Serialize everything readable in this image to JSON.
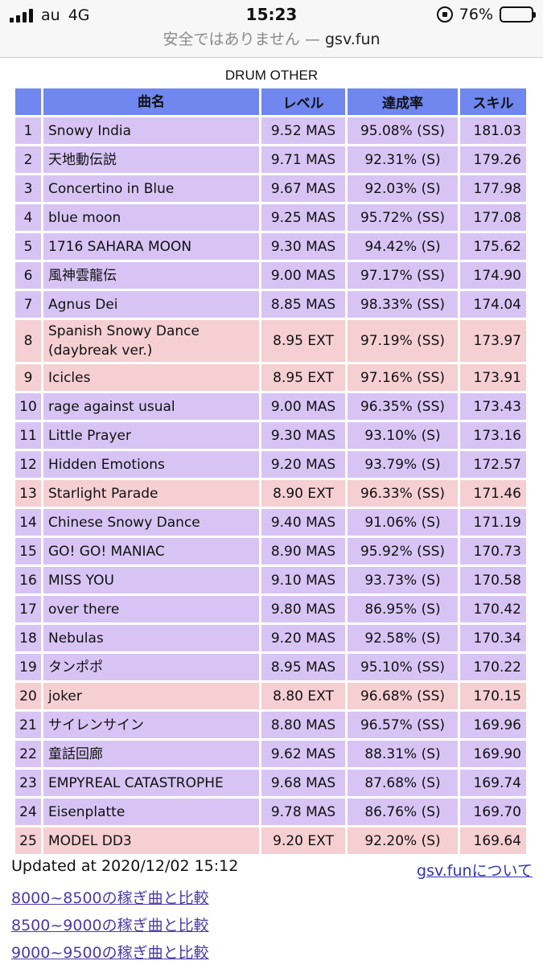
{
  "status": {
    "carrier": "au",
    "network": "4G",
    "time": "15:23",
    "battery": "76%",
    "battery_level": 0.76
  },
  "url": {
    "warning": "安全ではありません — ",
    "domain": "gsv.fun"
  },
  "table": {
    "caption": "DRUM OTHER",
    "headers": {
      "no": "",
      "title": "曲名",
      "level": "レベル",
      "rate": "達成率",
      "skill": "スキル"
    },
    "rows": [
      {
        "no": "1",
        "title": "Snowy India",
        "level": "9.52 MAS",
        "rate": "95.08% (SS)",
        "skill": "181.03",
        "kind": "mas"
      },
      {
        "no": "2",
        "title": "天地動伝説",
        "level": "9.71 MAS",
        "rate": "92.31% (S)",
        "skill": "179.26",
        "kind": "mas"
      },
      {
        "no": "3",
        "title": "Concertino in Blue",
        "level": "9.67 MAS",
        "rate": "92.03% (S)",
        "skill": "177.98",
        "kind": "mas"
      },
      {
        "no": "4",
        "title": "blue moon",
        "level": "9.25 MAS",
        "rate": "95.72% (SS)",
        "skill": "177.08",
        "kind": "mas"
      },
      {
        "no": "5",
        "title": "1716 SAHARA MOON",
        "level": "9.30 MAS",
        "rate": "94.42% (S)",
        "skill": "175.62",
        "kind": "mas"
      },
      {
        "no": "6",
        "title": "風神雲龍伝",
        "level": "9.00 MAS",
        "rate": "97.17% (SS)",
        "skill": "174.90",
        "kind": "mas"
      },
      {
        "no": "7",
        "title": "Agnus Dei",
        "level": "8.85 MAS",
        "rate": "98.33% (SS)",
        "skill": "174.04",
        "kind": "mas"
      },
      {
        "no": "8",
        "title": "Spanish Snowy Dance (daybreak ver.)",
        "level": "8.95 EXT",
        "rate": "97.19% (SS)",
        "skill": "173.97",
        "kind": "ext"
      },
      {
        "no": "9",
        "title": "Icicles",
        "level": "8.95 EXT",
        "rate": "97.16% (SS)",
        "skill": "173.91",
        "kind": "ext"
      },
      {
        "no": "10",
        "title": "rage against usual",
        "level": "9.00 MAS",
        "rate": "96.35% (SS)",
        "skill": "173.43",
        "kind": "mas"
      },
      {
        "no": "11",
        "title": "Little Prayer",
        "level": "9.30 MAS",
        "rate": "93.10% (S)",
        "skill": "173.16",
        "kind": "mas"
      },
      {
        "no": "12",
        "title": "Hidden Emotions",
        "level": "9.20 MAS",
        "rate": "93.79% (S)",
        "skill": "172.57",
        "kind": "mas"
      },
      {
        "no": "13",
        "title": "Starlight Parade",
        "level": "8.90 EXT",
        "rate": "96.33% (SS)",
        "skill": "171.46",
        "kind": "ext"
      },
      {
        "no": "14",
        "title": "Chinese Snowy Dance",
        "level": "9.40 MAS",
        "rate": "91.06% (S)",
        "skill": "171.19",
        "kind": "mas"
      },
      {
        "no": "15",
        "title": "GO! GO! MANIAC",
        "level": "8.90 MAS",
        "rate": "95.92% (SS)",
        "skill": "170.73",
        "kind": "mas"
      },
      {
        "no": "16",
        "title": "MISS YOU",
        "level": "9.10 MAS",
        "rate": "93.73% (S)",
        "skill": "170.58",
        "kind": "mas"
      },
      {
        "no": "17",
        "title": "over there",
        "level": "9.80 MAS",
        "rate": "86.95% (S)",
        "skill": "170.42",
        "kind": "mas"
      },
      {
        "no": "18",
        "title": "Nebulas",
        "level": "9.20 MAS",
        "rate": "92.58% (S)",
        "skill": "170.34",
        "kind": "mas"
      },
      {
        "no": "19",
        "title": "タンポポ",
        "level": "8.95 MAS",
        "rate": "95.10% (SS)",
        "skill": "170.22",
        "kind": "mas"
      },
      {
        "no": "20",
        "title": "joker",
        "level": "8.80 EXT",
        "rate": "96.68% (SS)",
        "skill": "170.15",
        "kind": "ext"
      },
      {
        "no": "21",
        "title": "サイレンサイン",
        "level": "8.80 MAS",
        "rate": "96.57% (SS)",
        "skill": "169.96",
        "kind": "mas"
      },
      {
        "no": "22",
        "title": "童話回廊",
        "level": "9.62 MAS",
        "rate": "88.31% (S)",
        "skill": "169.90",
        "kind": "mas"
      },
      {
        "no": "23",
        "title": "EMPYREAL CATASTROPHE",
        "level": "9.68 MAS",
        "rate": "87.68% (S)",
        "skill": "169.74",
        "kind": "mas"
      },
      {
        "no": "24",
        "title": "Eisenplatte",
        "level": "9.78 MAS",
        "rate": "86.76% (S)",
        "skill": "169.70",
        "kind": "mas"
      },
      {
        "no": "25",
        "title": "MODEL DD3",
        "level": "9.20 EXT",
        "rate": "92.20% (S)",
        "skill": "169.64",
        "kind": "ext"
      }
    ]
  },
  "footer": {
    "updated": "Updated at 2020/12/02 15:12",
    "about": "gsv.funについて",
    "links": [
      "8000~8500の稼ぎ曲と比較",
      "8500~9000の稼ぎ曲と比較",
      "9000~9500の稼ぎ曲と比較"
    ]
  }
}
